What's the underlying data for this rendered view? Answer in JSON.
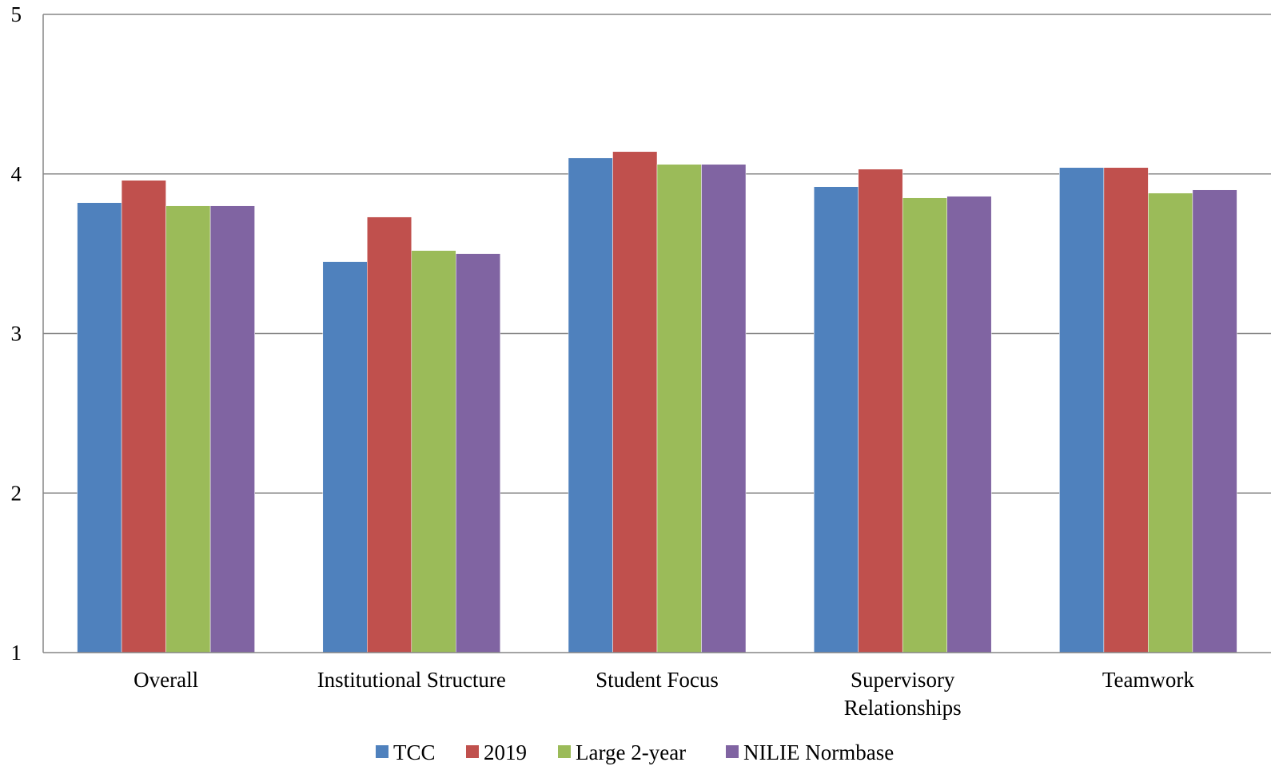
{
  "chart_data": {
    "type": "bar",
    "categories": [
      [
        "Overall"
      ],
      [
        "Institutional Structure"
      ],
      [
        "Student Focus"
      ],
      [
        "Supervisory",
        "Relationships"
      ],
      [
        "Teamwork"
      ]
    ],
    "series": [
      {
        "name": "TCC",
        "color": "#4F81BD",
        "values": [
          3.82,
          3.45,
          4.1,
          3.92,
          4.04
        ]
      },
      {
        "name": "2019",
        "color": "#C0504D",
        "values": [
          3.96,
          3.73,
          4.14,
          4.03,
          4.04
        ]
      },
      {
        "name": "Large 2-year",
        "color": "#9BBB59",
        "values": [
          3.8,
          3.52,
          4.06,
          3.85,
          3.88
        ]
      },
      {
        "name": "NILIE Normbase",
        "color": "#8064A2",
        "values": [
          3.8,
          3.5,
          4.06,
          3.86,
          3.9
        ]
      }
    ],
    "yticks": [
      "1",
      "2",
      "3",
      "4",
      "5"
    ],
    "ylim": [
      1,
      5
    ],
    "grid": true,
    "legend_position": "bottom",
    "title": "",
    "xlabel": "",
    "ylabel": ""
  }
}
